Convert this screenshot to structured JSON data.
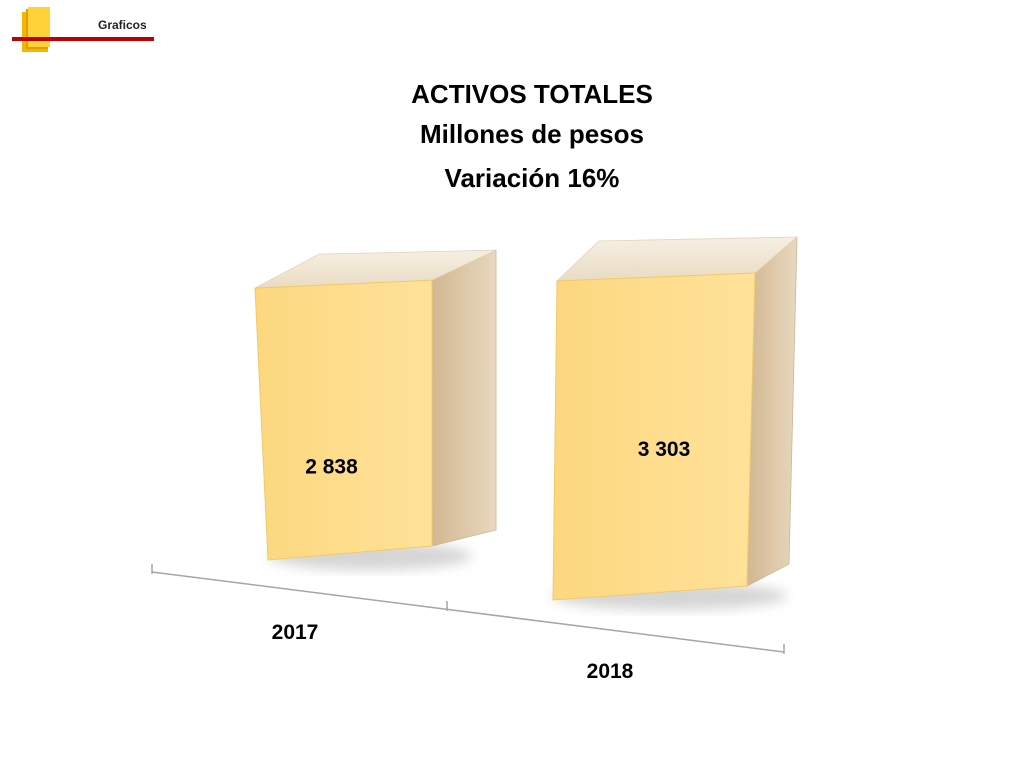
{
  "header": {
    "section_label": "Graficos",
    "colors": {
      "logo_yellow": "#ffd23a",
      "logo_dark_yellow": "#f2b800",
      "line_red": "#c00000"
    }
  },
  "chart_data": {
    "type": "bar",
    "title_lines": [
      "ACTIVOS TOTALES",
      "Millones de pesos",
      "Variación 16%"
    ],
    "categories": [
      "2017",
      "2018"
    ],
    "values": [
      2838,
      3303
    ],
    "value_labels": [
      "2 838",
      "3 303"
    ],
    "xlabel": "",
    "ylabel": "",
    "grid": false,
    "legend": "none",
    "style": "3d-columns",
    "colors": {
      "front": "#fedd88",
      "side": "#d9c19a",
      "top": "#efe3cc"
    }
  }
}
